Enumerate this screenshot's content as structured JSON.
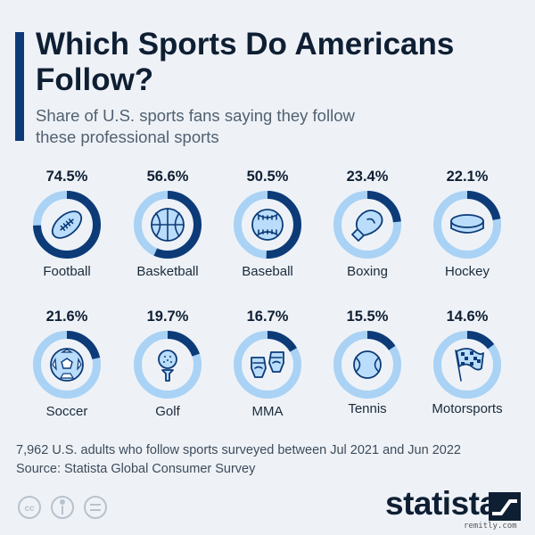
{
  "header": {
    "title": "Which Sports Do Americans Follow?",
    "subtitle": "Share of U.S. sports fans saying they follow these professional sports"
  },
  "chart_data": {
    "type": "donut-grid",
    "title": "Which Sports Do Americans Follow?",
    "subtitle": "Share of U.S. sports fans saying they follow these professional sports",
    "unit": "%",
    "max": 100,
    "items": [
      {
        "label": "Football",
        "value": 74.5,
        "value_label": "74.5%",
        "icon": "football-icon"
      },
      {
        "label": "Basketball",
        "value": 56.6,
        "value_label": "56.6%",
        "icon": "basketball-icon"
      },
      {
        "label": "Baseball",
        "value": 50.5,
        "value_label": "50.5%",
        "icon": "baseball-icon"
      },
      {
        "label": "Boxing",
        "value": 23.4,
        "value_label": "23.4%",
        "icon": "boxing-glove-icon"
      },
      {
        "label": "Hockey",
        "value": 22.1,
        "value_label": "22.1%",
        "icon": "hockey-puck-icon"
      },
      {
        "label": "Soccer",
        "value": 21.6,
        "value_label": "21.6%",
        "icon": "soccer-ball-icon"
      },
      {
        "label": "Golf",
        "value": 19.7,
        "value_label": "19.7%",
        "icon": "golf-ball-icon"
      },
      {
        "label": "MMA",
        "value": 16.7,
        "value_label": "16.7%",
        "icon": "mma-gloves-icon"
      },
      {
        "label": "Tennis",
        "value": 15.5,
        "value_label": "15.5%",
        "icon": "tennis-ball-icon"
      },
      {
        "label": "Motorsports",
        "value": 14.6,
        "value_label": "14.6%",
        "icon": "checkered-flag-icon"
      }
    ]
  },
  "colors": {
    "ring_filled": "#0d3b78",
    "ring_track": "#a9d2f5",
    "icon_fill": "#b9ddfa",
    "icon_stroke": "#0d3b78",
    "accent": "#0d3b78"
  },
  "footer": {
    "survey_note": "7,962 U.S. adults who follow sports surveyed between Jul 2021 and Jun 2022",
    "source": "Source: Statista Global Consumer Survey",
    "brand": "statista",
    "watermark": "remitly.com"
  }
}
